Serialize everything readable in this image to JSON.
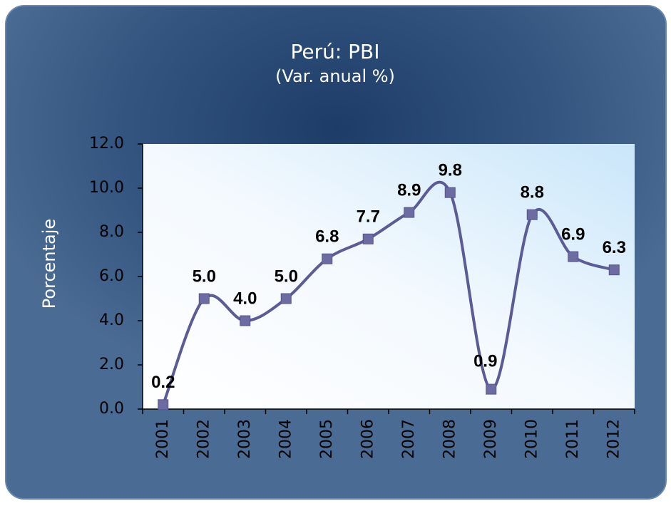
{
  "chart_data": {
    "type": "line",
    "title": "Perú: PBI",
    "subtitle": "(Var. anual %)",
    "y_label": "Porcentaje",
    "categories": [
      "2001",
      "2002",
      "2003",
      "2004",
      "2005",
      "2006",
      "2007",
      "2008",
      "2009",
      "2010",
      "2011",
      "2012"
    ],
    "series": [
      {
        "name": "PBI",
        "color": "#5b5b95",
        "values": [
          0.2,
          5.0,
          4.0,
          5.0,
          6.8,
          7.7,
          8.9,
          9.8,
          0.9,
          8.8,
          6.9,
          6.3
        ],
        "value_labels": [
          "0.2",
          "5.0",
          "4.0",
          "5.0",
          "6.8",
          "7.7",
          "8.9",
          "9.8",
          "0.9",
          "8.8",
          "6.9",
          "6.3"
        ]
      }
    ],
    "ylim": [
      0,
      12
    ],
    "yticks": [
      {
        "value": 0,
        "label": "0.0"
      },
      {
        "value": 2,
        "label": "2.0"
      },
      {
        "value": 4,
        "label": "4.0"
      },
      {
        "value": 6,
        "label": "6.0"
      },
      {
        "value": 8,
        "label": "8.0"
      },
      {
        "value": 10,
        "label": "10.0"
      },
      {
        "value": 12,
        "label": "12.0"
      }
    ],
    "grid": false
  }
}
